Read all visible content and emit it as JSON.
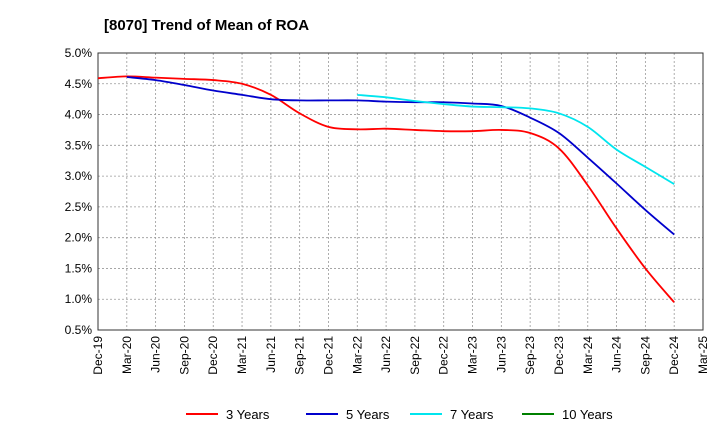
{
  "chart_data": {
    "type": "line",
    "title": "[8070]  Trend of Mean of ROA",
    "xlabel": "",
    "ylabel": "",
    "ylim": [
      0.5,
      5.0
    ],
    "yticks": [
      "0.5%",
      "1.0%",
      "1.5%",
      "2.0%",
      "2.5%",
      "3.0%",
      "3.5%",
      "4.0%",
      "4.5%",
      "5.0%"
    ],
    "categories": [
      "Dec-19",
      "Mar-20",
      "Jun-20",
      "Sep-20",
      "Dec-20",
      "Mar-21",
      "Jun-21",
      "Sep-21",
      "Dec-21",
      "Mar-22",
      "Jun-22",
      "Sep-22",
      "Dec-22",
      "Mar-23",
      "Jun-23",
      "Sep-23",
      "Dec-23",
      "Mar-24",
      "Jun-24",
      "Sep-24",
      "Dec-24",
      "Mar-25"
    ],
    "legend_position": "bottom",
    "grid": true,
    "series": [
      {
        "name": "3 Years",
        "color": "#ff0000",
        "values": [
          4.59,
          4.62,
          4.6,
          4.58,
          4.56,
          4.5,
          4.32,
          4.02,
          3.8,
          3.76,
          3.77,
          3.75,
          3.73,
          3.73,
          3.75,
          3.7,
          3.45,
          2.85,
          2.15,
          1.5,
          0.95,
          null
        ]
      },
      {
        "name": "5 Years",
        "color": "#0000cc",
        "values": [
          null,
          4.61,
          4.56,
          4.48,
          4.39,
          4.32,
          4.25,
          4.23,
          4.23,
          4.23,
          4.21,
          4.2,
          4.2,
          4.18,
          4.14,
          3.95,
          3.7,
          3.3,
          2.88,
          2.45,
          2.05,
          null
        ]
      },
      {
        "name": "7 Years",
        "color": "#00e5ee",
        "values": [
          null,
          null,
          null,
          null,
          null,
          null,
          null,
          null,
          null,
          4.32,
          4.28,
          4.22,
          4.17,
          4.13,
          4.12,
          4.1,
          4.02,
          3.8,
          3.43,
          3.15,
          2.87,
          null
        ]
      },
      {
        "name": "10 Years",
        "color": "#008000",
        "values": [
          null,
          null,
          null,
          null,
          null,
          null,
          null,
          null,
          null,
          null,
          null,
          null,
          null,
          null,
          null,
          null,
          null,
          null,
          null,
          null,
          null,
          null
        ]
      }
    ]
  }
}
